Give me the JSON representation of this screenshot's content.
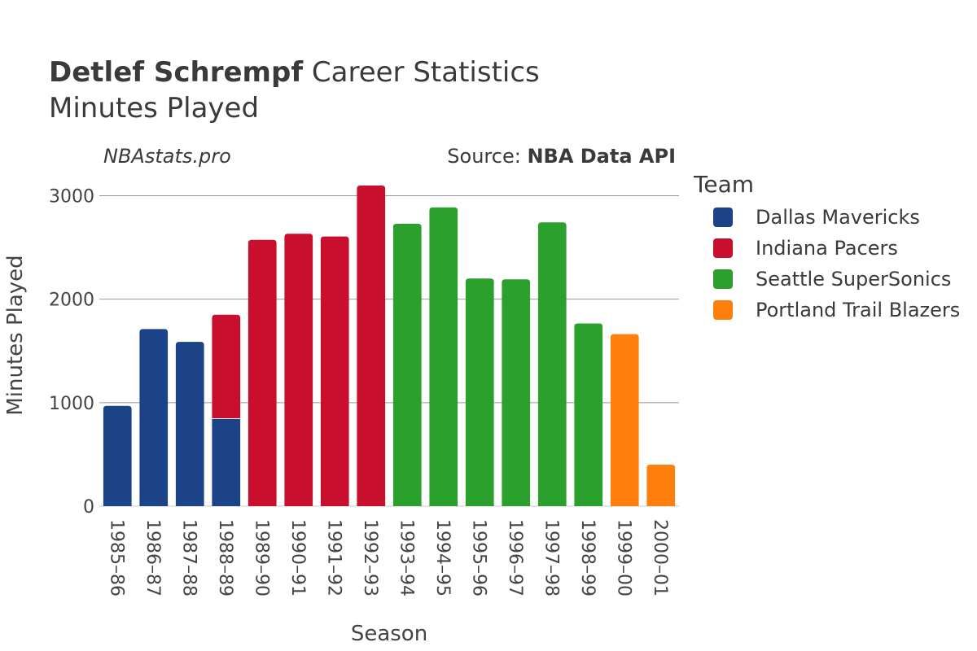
{
  "title": {
    "bold": "Detlef Schrempf",
    "rest": " Career Statistics",
    "subtitle": "Minutes Played"
  },
  "watermark": "NBAstats.pro",
  "source": {
    "prefix": "Source: ",
    "name": "NBA Data API"
  },
  "legend": {
    "title": "Team"
  },
  "chart_data": {
    "type": "bar",
    "stacked": true,
    "title": "Detlef Schrempf Career Statistics",
    "subtitle": "Minutes Played",
    "xlabel": "Season",
    "ylabel": "Minutes Played",
    "ylim": [
      0,
      3200
    ],
    "yticks": [
      0,
      1000,
      2000,
      3000
    ],
    "grid": true,
    "legend_position": "right",
    "categories": [
      "1985–86",
      "1986–87",
      "1987–88",
      "1988–89",
      "1989–90",
      "1990–91",
      "1991–92",
      "1992–93",
      "1993–94",
      "1994–95",
      "1995–96",
      "1996–97",
      "1997–98",
      "1998–99",
      "1999–00",
      "2000–01"
    ],
    "series": [
      {
        "name": "Dallas Mavericks",
        "color": "#1c4288",
        "values": [
          969,
          1711,
          1587,
          845,
          0,
          0,
          0,
          0,
          0,
          0,
          0,
          0,
          0,
          0,
          0,
          0
        ]
      },
      {
        "name": "Indiana Pacers",
        "color": "#c8102e",
        "values": [
          0,
          0,
          0,
          1005,
          2573,
          2632,
          2605,
          3098,
          0,
          0,
          0,
          0,
          0,
          0,
          0,
          0
        ]
      },
      {
        "name": "Seattle SuperSonics",
        "color": "#2ca02c",
        "values": [
          0,
          0,
          0,
          0,
          0,
          0,
          0,
          0,
          2728,
          2886,
          2200,
          2192,
          2742,
          1765,
          0,
          0
        ]
      },
      {
        "name": "Portland Trail Blazers",
        "color": "#ff7f0e",
        "values": [
          0,
          0,
          0,
          0,
          0,
          0,
          0,
          0,
          0,
          0,
          0,
          0,
          0,
          0,
          1662,
          401
        ]
      }
    ]
  }
}
